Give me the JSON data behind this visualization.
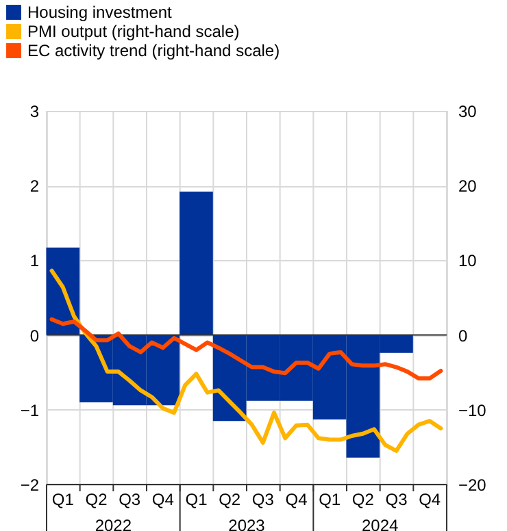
{
  "chart_data": {
    "type": "bar",
    "x": [
      "2022-02-15",
      "2022-05-15",
      "2022-08-15",
      "2022-11-15",
      "2023-02-15",
      "2023-05-15",
      "2023-08-15",
      "2023-11-15",
      "2024-02-15",
      "2024-05-15",
      "2024-08-15"
    ],
    "xlim": [
      "2022-01",
      "2025-01"
    ],
    "xticks": [
      {
        "value": "2022-01",
        "label": null
      },
      {
        "value": "2022-02-15",
        "label": "Q1"
      },
      {
        "value": "2022-04",
        "label": null
      },
      {
        "value": "2022-05-15",
        "label": "Q2"
      },
      {
        "value": "2022-07",
        "label": null
      },
      {
        "value": "2022-08-15",
        "label": "Q3"
      },
      {
        "value": "2022-10",
        "label": null
      },
      {
        "value": "2022-11-15",
        "label": "Q4"
      },
      {
        "value": "2023-01",
        "label": null
      },
      {
        "value": "2023-02-15",
        "label": "Q1"
      },
      {
        "value": "2023-04",
        "label": null
      },
      {
        "value": "2023-05-15",
        "label": "Q2"
      },
      {
        "value": "2023-07",
        "label": null
      },
      {
        "value": "2023-08-15",
        "label": "Q3"
      },
      {
        "value": "2023-10",
        "label": null
      },
      {
        "value": "2023-11-15",
        "label": "Q4"
      },
      {
        "value": "2024-01",
        "label": null
      },
      {
        "value": "2024-02-15",
        "label": "Q1"
      },
      {
        "value": "2024-04",
        "label": null
      },
      {
        "value": "2024-05-15",
        "label": "Q2"
      },
      {
        "value": "2024-07",
        "label": null
      },
      {
        "value": "2024-08-15",
        "label": "Q3"
      },
      {
        "value": "2024-10",
        "label": null
      },
      {
        "value": "2024-11-15",
        "label": "Q4"
      },
      {
        "value": "2025-01",
        "label": null
      }
    ],
    "annotations": [
      "2022",
      "2023",
      "2024"
    ],
    "series": [
      {
        "name": "Housing investment",
        "color": "#003299",
        "values": [
          1.17,
          -0.9,
          -0.94,
          -0.94,
          1.92,
          -1.15,
          -0.88,
          -0.88,
          -1.13,
          -1.64,
          -0.24
        ]
      },
      {
        "name": "PMI output (right-hand scale)",
        "color": "#ffb400",
        "type": "line",
        "axis": "y2",
        "x": [
          "2022-01-15",
          "2022-02-15",
          "2022-03-15",
          "2022-04-15",
          "2022-05-15",
          "2022-06-15",
          "2022-07-15",
          "2022-08-15",
          "2022-09-15",
          "2022-10-15",
          "2022-11-15",
          "2022-12-15",
          "2023-01-15",
          "2023-02-15",
          "2023-03-15",
          "2023-04-15",
          "2023-05-15",
          "2023-06-15",
          "2023-07-15",
          "2023-08-15",
          "2023-09-15",
          "2023-10-15",
          "2023-11-15",
          "2023-12-15",
          "2024-01-15",
          "2024-02-15",
          "2024-03-15",
          "2024-04-15",
          "2024-05-15",
          "2024-06-15",
          "2024-07-15",
          "2024-08-15",
          "2024-09-15",
          "2024-10-15",
          "2024-11-15",
          "2024-12-15"
        ],
        "values": [
          8.6,
          6.4,
          2.5,
          0.3,
          -1.5,
          -4.9,
          -4.9,
          -6.1,
          -7.4,
          -8.3,
          -9.8,
          -10.4,
          -6.7,
          -5.2,
          -7.7,
          -7.4,
          -8.9,
          -10.4,
          -12.0,
          -14.4,
          -10.4,
          -13.8,
          -12.1,
          -12.0,
          -13.8,
          -14.0,
          -14.0,
          -13.5,
          -13.2,
          -12.6,
          -14.7,
          -15.5,
          -13.2,
          -12.0,
          -11.5,
          -12.5
        ]
      },
      {
        "name": "EC activity trend (right-hand scale)",
        "color": "#ff4b00",
        "type": "line",
        "axis": "y2",
        "x": [
          "2022-01-15",
          "2022-02-15",
          "2022-03-15",
          "2022-04-15",
          "2022-05-15",
          "2022-06-15",
          "2022-07-15",
          "2022-08-15",
          "2022-09-15",
          "2022-10-15",
          "2022-11-15",
          "2022-12-15",
          "2023-01-15",
          "2023-02-15",
          "2023-03-15",
          "2023-04-15",
          "2023-05-15",
          "2023-06-15",
          "2023-07-15",
          "2023-08-15",
          "2023-09-15",
          "2023-10-15",
          "2023-11-15",
          "2023-12-15",
          "2024-01-15",
          "2024-02-15",
          "2024-03-15",
          "2024-04-15",
          "2024-05-15",
          "2024-06-15",
          "2024-07-15",
          "2024-08-15",
          "2024-09-15",
          "2024-10-15",
          "2024-11-15",
          "2024-12-15"
        ],
        "values": [
          2.1,
          1.5,
          1.8,
          0.6,
          -0.7,
          -0.7,
          0.2,
          -1.5,
          -2.3,
          -1.0,
          -1.7,
          -0.4,
          -1.2,
          -2.0,
          -1.0,
          -1.7,
          -2.5,
          -3.4,
          -4.3,
          -4.3,
          -4.9,
          -5.1,
          -3.7,
          -3.7,
          -4.5,
          -2.5,
          -2.3,
          -3.9,
          -4.1,
          -4.1,
          -3.9,
          -4.3,
          -4.9,
          -5.8,
          -5.8,
          -4.8
        ]
      }
    ],
    "ylim": [
      -2,
      3
    ],
    "yticks": [
      -2,
      -1,
      0,
      1,
      2,
      3
    ],
    "y2lim": [
      -20,
      30
    ],
    "y2ticks": [
      -20,
      -10,
      0,
      10,
      20,
      30
    ],
    "grid": true,
    "legend": "top left",
    "line_style": "solid",
    "marker": "none"
  }
}
